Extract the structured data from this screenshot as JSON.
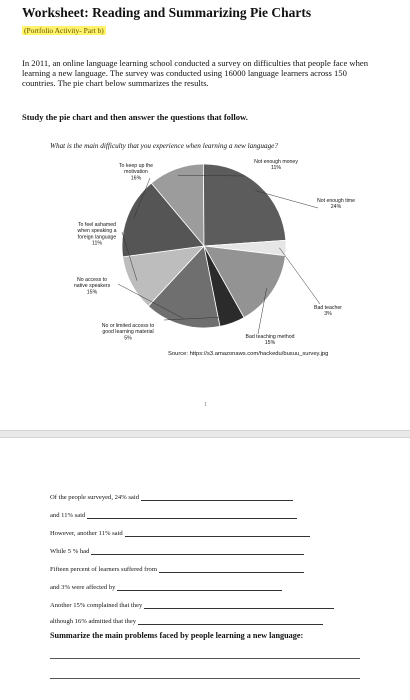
{
  "worksheet": {
    "title": "Worksheet: Reading and Summarizing Pie Charts",
    "activity": "(Portfolio Activity- Part b)",
    "intro": "In 2011, an online language learning school conducted a survey on difficulties that people face when learning a new language. The survey was conducted using 16000 language learners across 150 countries. The pie chart below summarizes the results.",
    "instruction": "Study the pie chart and then answer the questions that follow.",
    "question": "What is the main difficulty that you experience when learning a new language?",
    "source": "Source: https://s3.amazonaws.com/hackedu/busuu_survey.jpg",
    "page_number": "1"
  },
  "chart_data": {
    "type": "pie",
    "slices": [
      {
        "label": "Not enough money",
        "value": 11,
        "display": "11%",
        "color": "#9c9c9c"
      },
      {
        "label": "Not enough time",
        "value": 24,
        "display": "24%",
        "color": "#5c5c5c"
      },
      {
        "label": "Bad teacher",
        "value": 3,
        "display": "3%",
        "color": "#e6e6e6"
      },
      {
        "label": "Bad teaching method",
        "value": 15,
        "display": "15%",
        "color": "#939393"
      },
      {
        "label": "No or limited access to good learning material",
        "value": 5,
        "display": "5%",
        "color": "#2b2b2b"
      },
      {
        "label": "No access to native speakers",
        "value": 15,
        "display": "15%",
        "color": "#6f6f6f"
      },
      {
        "label": "To feel ashamed when speaking a foreign language",
        "value": 11,
        "display": "11%",
        "color": "#bdbdbd"
      },
      {
        "label": "To keep up the motivation",
        "value": 16,
        "display": "16%",
        "color": "#555555"
      }
    ]
  },
  "exercise": {
    "sentences": [
      "Of the people surveyed, 24% said",
      "and 11% said",
      "However, another 11% said",
      "While 5 % had",
      "Fifteen percent of learners suffered from",
      "and 3% were affected by",
      "Another 15% complained that they",
      "although 16% admitted that they"
    ],
    "summary_heading": "Summarize the main problems faced by people learning a new language:"
  }
}
